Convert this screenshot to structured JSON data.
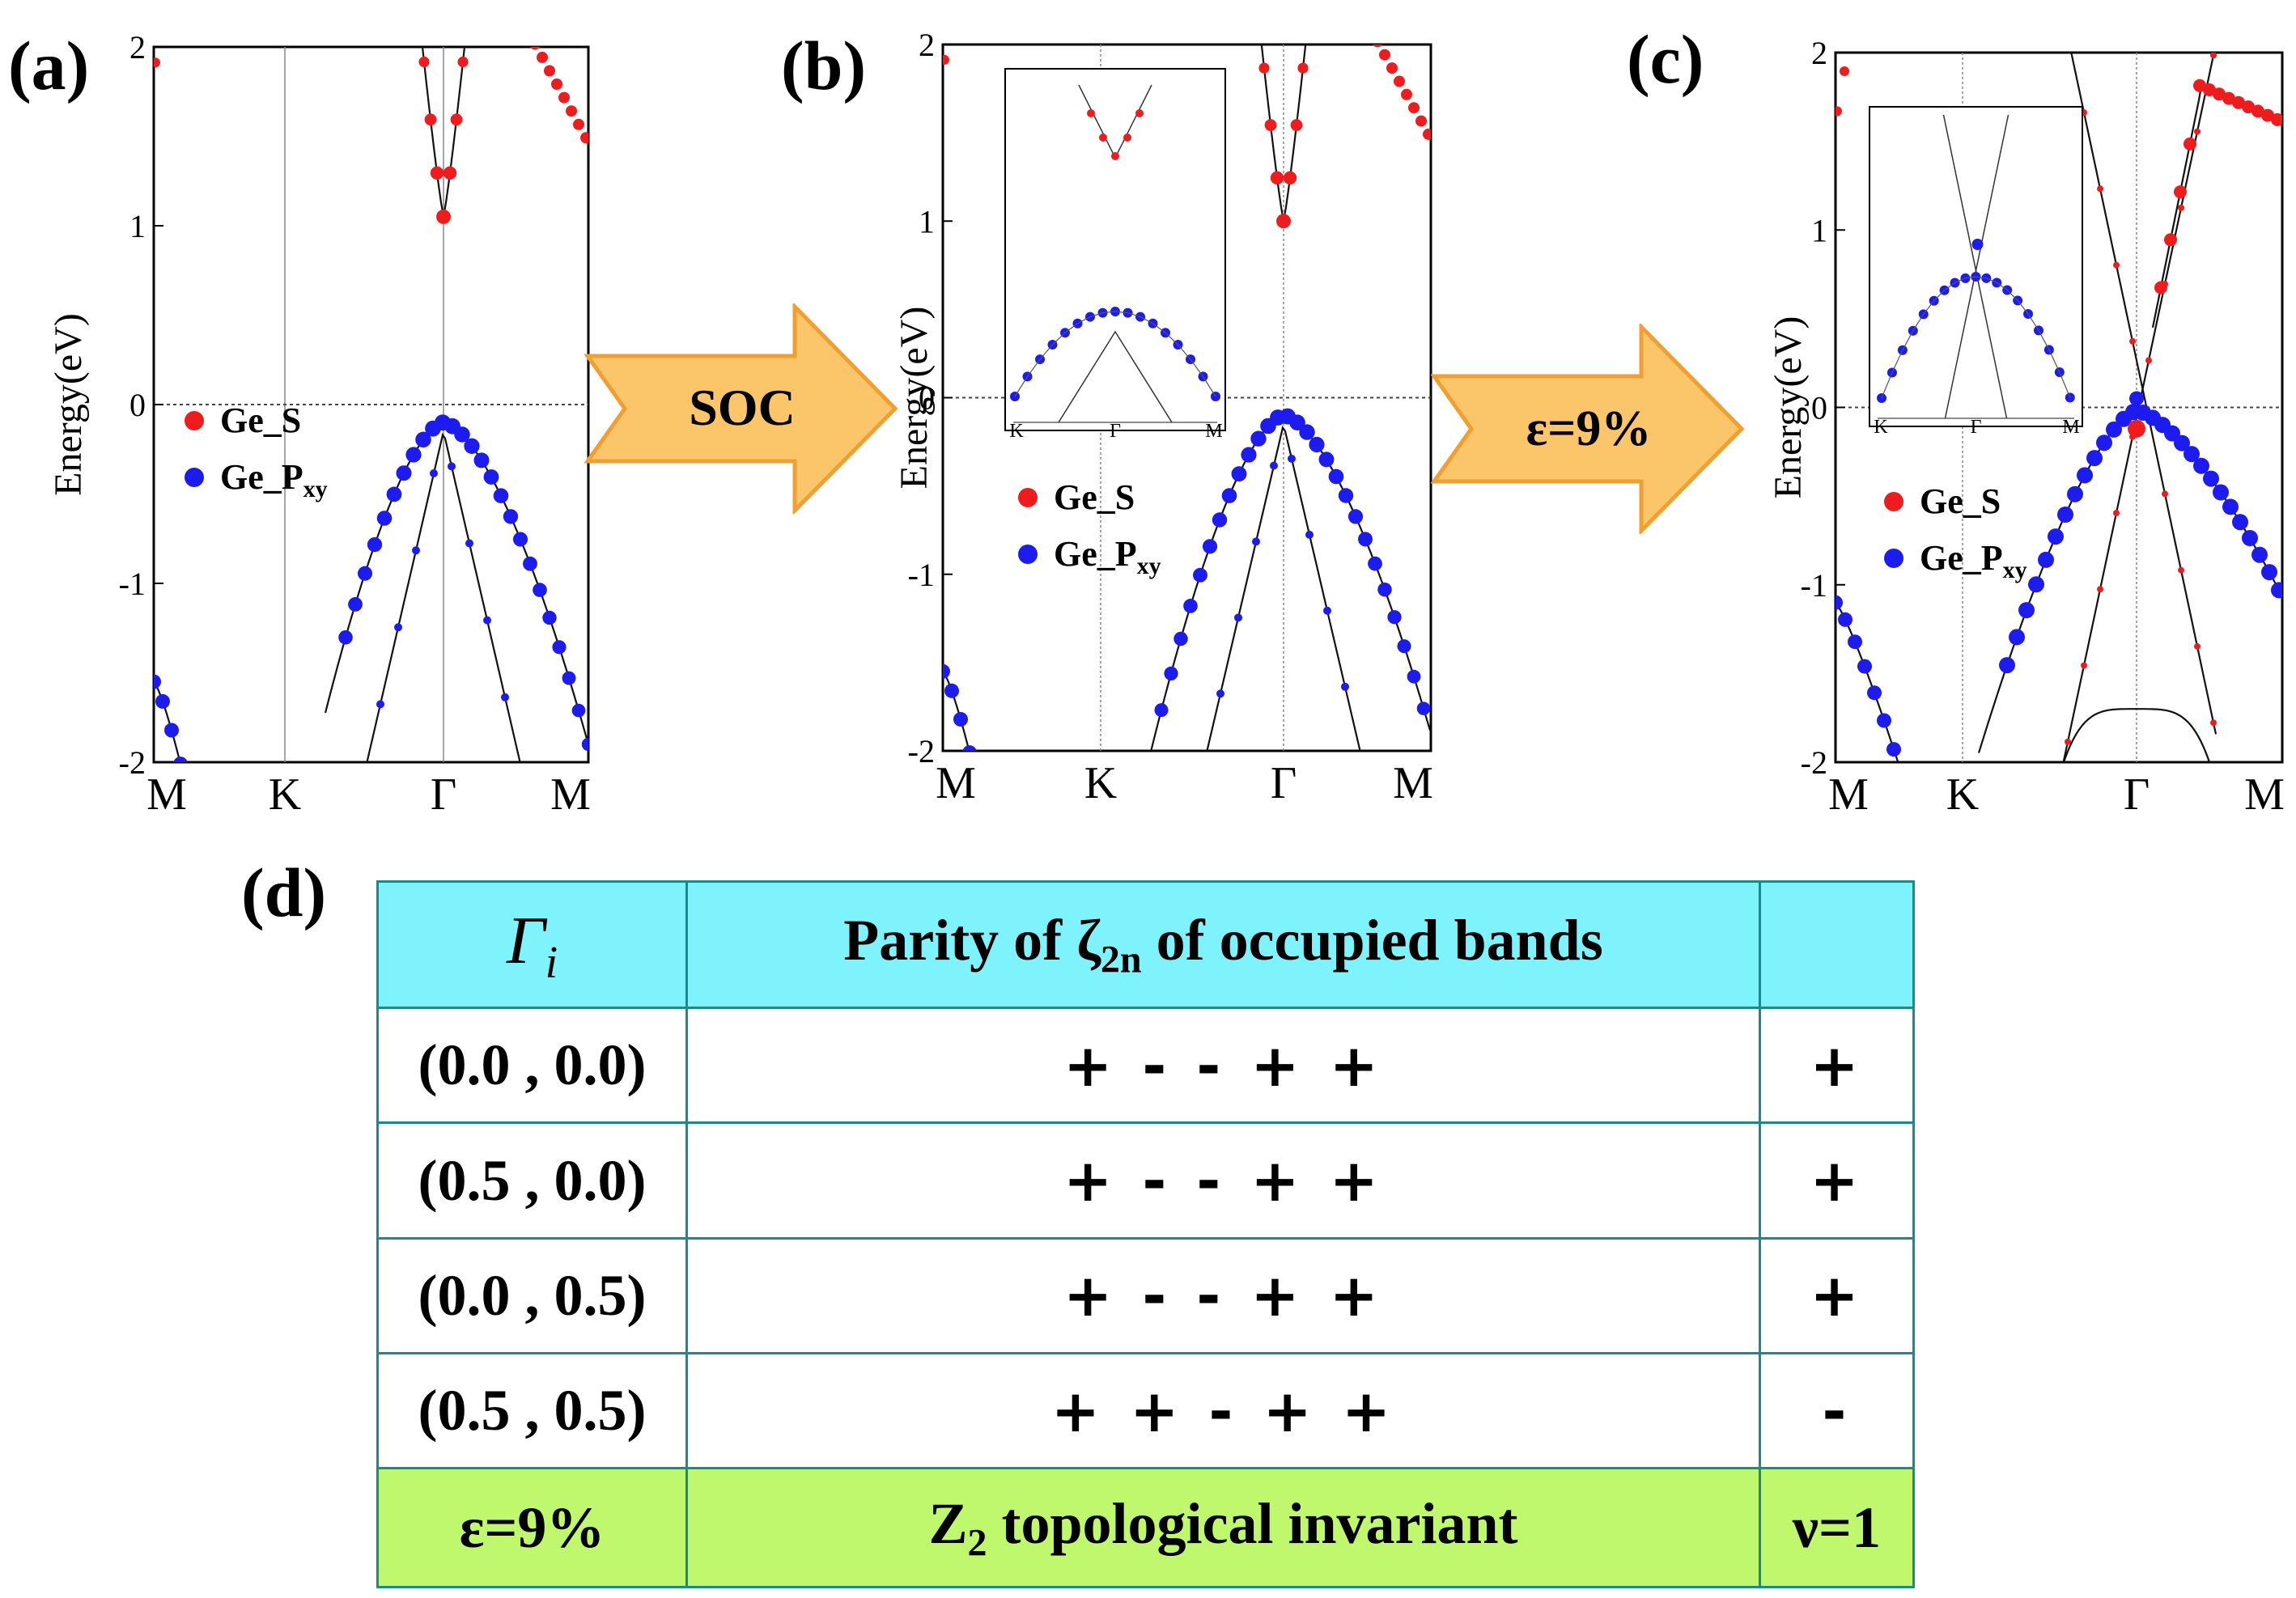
{
  "panels": [
    {
      "letter": "(a)",
      "ylabel": "Energy(eV)",
      "yticks": [
        "2",
        "1",
        "0",
        "-1",
        "-2"
      ],
      "kpoints": [
        "M",
        "K",
        "Γ",
        "M"
      ],
      "legend": [
        {
          "label": "Ge_S",
          "color": "#ee1c1c"
        },
        {
          "label": "Ge_P",
          "sub": "xy",
          "color": "#1c1cee"
        }
      ]
    },
    {
      "letter": "(b)",
      "ylabel": "Energy(eV)",
      "yticks": [
        "2",
        "1",
        "0",
        "-1",
        "-2"
      ],
      "kpoints": [
        "M",
        "K",
        "Γ",
        "M"
      ],
      "inset_kpoints": [
        "K",
        "Γ",
        "M"
      ],
      "legend": [
        {
          "label": "Ge_S",
          "color": "#ee1c1c"
        },
        {
          "label": "Ge_P",
          "sub": "xy",
          "color": "#1c1cee"
        }
      ]
    },
    {
      "letter": "(c)",
      "ylabel": "Energy(eV)",
      "yticks": [
        "2",
        "1",
        "0",
        "-1",
        "-2"
      ],
      "kpoints": [
        "M",
        "K",
        "Γ",
        "M"
      ],
      "inset_kpoints": [
        "K",
        "Γ",
        "M"
      ],
      "legend": [
        {
          "label": "Ge_S",
          "color": "#ee1c1c"
        },
        {
          "label": "Ge_P",
          "sub": "xy",
          "color": "#1c1cee"
        }
      ]
    }
  ],
  "arrows": [
    {
      "label": "SOC"
    },
    {
      "label": "ε=9%"
    }
  ],
  "colors": {
    "arrow_fill": "#fbc56a",
    "arrow_stroke": "#f0a030",
    "red": "#ee1c1c",
    "blue": "#1c1cee",
    "header_bg": "#7ff3fb",
    "footer_bg": "#bff86c",
    "border": "#1a8a8a"
  },
  "table": {
    "panel_letter": "(d)",
    "header": {
      "col1_symbol": "Γ",
      "col1_sub": "i",
      "col2_pre": "Parity of ζ",
      "col2_sub": "2n",
      "col2_post": " of occupied bands",
      "col3": ""
    },
    "rows": [
      {
        "k": "(0.0 , 0.0)",
        "parity": "+ - - + +",
        "product": "+"
      },
      {
        "k": "(0.5 , 0.0)",
        "parity": "+ - - + +",
        "product": "+"
      },
      {
        "k": "(0.0 , 0.5)",
        "parity": "+ - - + +",
        "product": "+"
      },
      {
        "k": "(0.5 , 0.5)",
        "parity": "+ + - + +",
        "product": "-"
      }
    ],
    "footer": {
      "strain": "ε=9%",
      "inv_pre": "Z",
      "inv_sub": "2",
      "inv_post": " topological invariant",
      "nu": "ν=1"
    }
  }
}
